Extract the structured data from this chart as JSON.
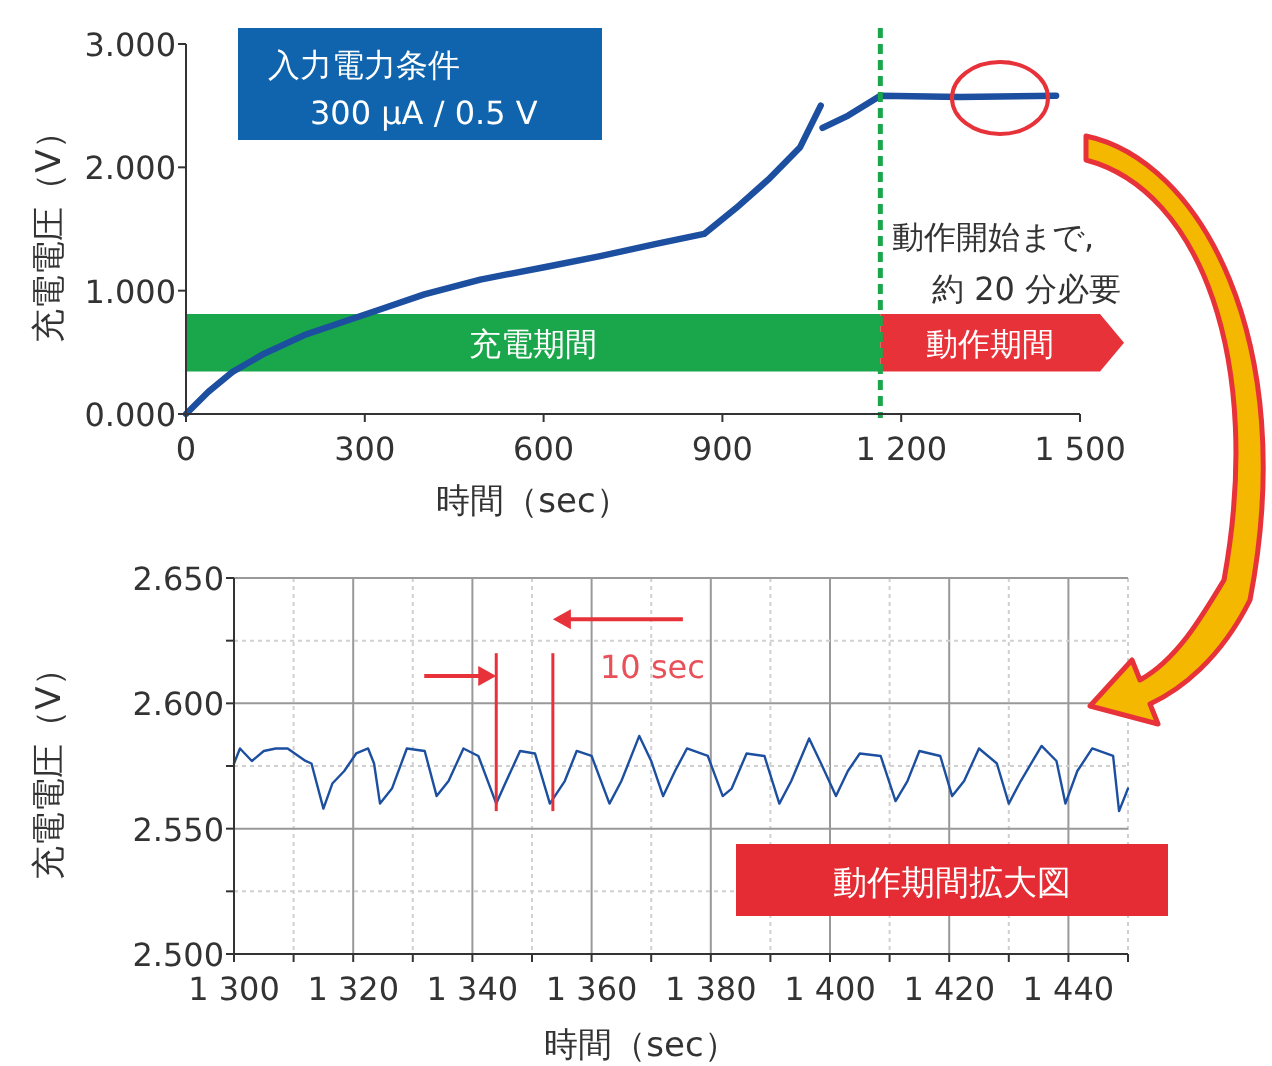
{
  "chart_data": [
    {
      "type": "line",
      "xlabel": "時間（sec）",
      "ylabel": "充電電圧（V）",
      "annotations": [
        "入力電力条件",
        "300 µA / 0.5 V",
        "動作開始まで,",
        "約 20 分必要"
      ],
      "xlim": [
        0,
        1500
      ],
      "xticks": [
        0,
        300,
        600,
        900,
        {
          "value": 1200,
          "label": "1 200"
        },
        {
          "value": 1500,
          "label": "1 500"
        }
      ],
      "ylim": [
        0,
        3
      ],
      "yticks": [
        {
          "value": 0,
          "label": "0.000"
        },
        {
          "value": 1,
          "label": "1.000"
        },
        {
          "value": 2,
          "label": "2.000"
        },
        {
          "value": 3,
          "label": "3.000"
        }
      ],
      "ref_lines": [
        {
          "axis": "x",
          "value": 1165,
          "color": "#1aa64a",
          "line_style": "dashed"
        }
      ],
      "bands": [
        {
          "axis": "x",
          "from": 0,
          "to": 1165,
          "label": "充電期間",
          "color": "#1aa64a"
        },
        {
          "axis": "x",
          "from": 1165,
          "to": 1500,
          "label": "動作期間",
          "color": "#e8323a"
        }
      ],
      "series": [
        {
          "color": "#1d4fa0",
          "x": [
            0,
            37.6,
            77.8,
            131.5,
            198.6,
            265.7,
            332.8,
            399.8,
            493.8,
            601.1,
            695,
            789,
            869.4,
            923,
            976.8,
            1030,
            1065
          ],
          "values": [
            0,
            0.18,
            0.34,
            0.49,
            0.64,
            0.75,
            0.86,
            0.97,
            1.09,
            1.19,
            1.28,
            1.38,
            1.46,
            1.67,
            1.9,
            2.16,
            2.5
          ]
        },
        {
          "color": "#1d4fa0",
          "x": [
            1068,
            1111,
            1165,
            1299,
            1460
          ],
          "values": [
            2.32,
            2.42,
            2.58,
            2.57,
            2.58
          ]
        }
      ]
    },
    {
      "type": "line",
      "xlabel": "時間（sec）",
      "ylabel": "充電電圧（V）",
      "grid": true,
      "annotations": [
        "10 sec",
        "動作期間拡大図"
      ],
      "xlim": [
        1300,
        1450
      ],
      "xticks": [
        {
          "value": 1300,
          "label": "1 300"
        },
        {
          "value": 1310,
          "label": null
        },
        {
          "value": 1320,
          "label": "1 320"
        },
        {
          "value": 1330,
          "label": null
        },
        {
          "value": 1340,
          "label": "1 340"
        },
        {
          "value": 1350,
          "label": null
        },
        {
          "value": 1360,
          "label": "1 360"
        },
        {
          "value": 1370,
          "label": null
        },
        {
          "value": 1380,
          "label": "1 380"
        },
        {
          "value": 1390,
          "label": null
        },
        {
          "value": 1400,
          "label": "1 400"
        },
        {
          "value": 1410,
          "label": null
        },
        {
          "value": 1420,
          "label": "1 420"
        },
        {
          "value": 1430,
          "label": null
        },
        {
          "value": 1440,
          "label": "1 440"
        },
        {
          "value": 1450,
          "label": null
        }
      ],
      "ylim": [
        2.5,
        2.65
      ],
      "yticks": [
        {
          "value": 2.5,
          "label": "2.500"
        },
        {
          "value": 2.525,
          "label": null
        },
        {
          "value": 2.55,
          "label": "2.550"
        },
        {
          "value": 2.575,
          "label": null
        },
        {
          "value": 2.6,
          "label": "2.600"
        },
        {
          "value": 2.625,
          "label": null
        },
        {
          "value": 2.65,
          "label": "2.650"
        }
      ],
      "ref_lines": [
        {
          "axis": "x",
          "value": 1344,
          "color": "#e8323a"
        },
        {
          "axis": "x",
          "value": 1353.5,
          "color": "#e8323a"
        }
      ],
      "series": [
        {
          "color": "#1d4fa0",
          "x": [
            1300,
            1301,
            1303,
            1305,
            1307,
            1309,
            1312,
            1313,
            1315,
            1316.5,
            1318.5,
            1320.5,
            1322.5,
            1323.5,
            1324.5,
            1326.5,
            1329,
            1332,
            1334,
            1336,
            1338.5,
            1341,
            1344,
            1345.5,
            1348,
            1350.5,
            1353,
            1355.5,
            1357.5,
            1360,
            1363,
            1365,
            1368,
            1370,
            1372,
            1374,
            1376,
            1379.5,
            1382,
            1383.5,
            1386,
            1389,
            1391.5,
            1393.5,
            1396.5,
            1398.5,
            1401,
            1403,
            1405,
            1408.5,
            1411,
            1413,
            1415,
            1418.5,
            1420.5,
            1422.5,
            1425,
            1428,
            1430,
            1432,
            1435.5,
            1438,
            1439.5,
            1441.5,
            1444,
            1447.5,
            1448.5,
            1450
          ],
          "values": [
            2.576,
            2.582,
            2.577,
            2.581,
            2.582,
            2.582,
            2.577,
            2.576,
            2.558,
            2.568,
            2.573,
            2.58,
            2.582,
            2.576,
            2.56,
            2.566,
            2.582,
            2.581,
            2.563,
            2.569,
            2.582,
            2.579,
            2.56,
            2.568,
            2.581,
            2.58,
            2.56,
            2.569,
            2.581,
            2.579,
            2.56,
            2.569,
            2.587,
            2.577,
            2.563,
            2.573,
            2.582,
            2.579,
            2.563,
            2.566,
            2.58,
            2.579,
            2.56,
            2.569,
            2.586,
            2.576,
            2.563,
            2.573,
            2.58,
            2.579,
            2.561,
            2.569,
            2.581,
            2.579,
            2.563,
            2.569,
            2.582,
            2.576,
            2.56,
            2.569,
            2.583,
            2.577,
            2.56,
            2.573,
            2.582,
            2.579,
            2.557,
            2.566
          ]
        }
      ]
    }
  ]
}
